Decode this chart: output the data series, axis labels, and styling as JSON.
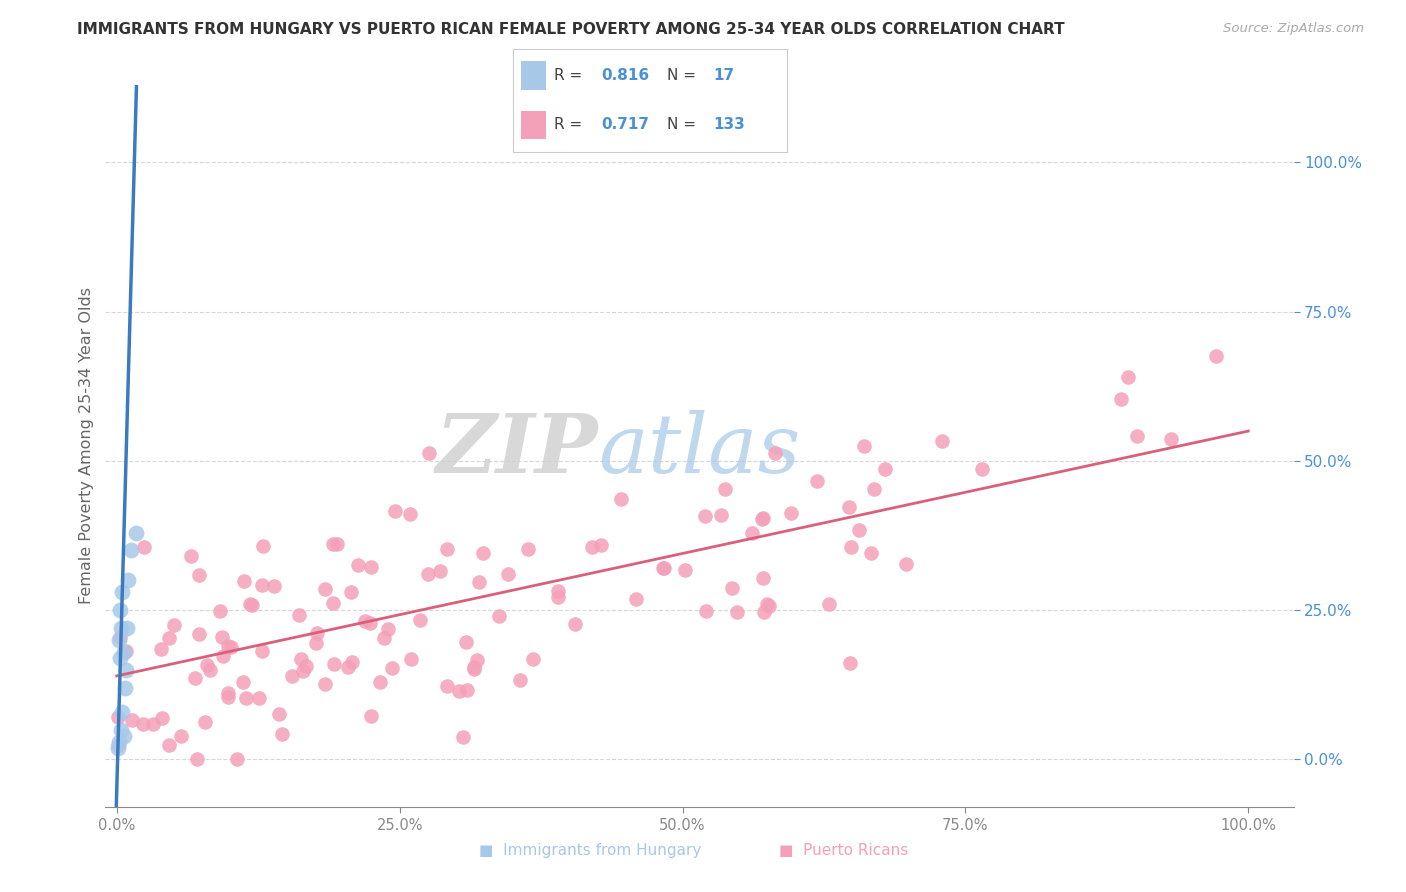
{
  "title": "IMMIGRANTS FROM HUNGARY VS PUERTO RICAN FEMALE POVERTY AMONG 25-34 YEAR OLDS CORRELATION CHART",
  "source": "Source: ZipAtlas.com",
  "ylabel": "Female Poverty Among 25-34 Year Olds",
  "watermark_zip": "ZIP",
  "watermark_atlas": "atlas",
  "xlim": [
    -0.01,
    1.04
  ],
  "ylim": [
    -0.08,
    1.13
  ],
  "xticks": [
    0.0,
    0.25,
    0.5,
    0.75,
    1.0
  ],
  "xticklabels": [
    "0.0%",
    "25.0%",
    "50.0%",
    "75.0%",
    "100.0%"
  ],
  "yticks": [
    0.0,
    0.25,
    0.5,
    0.75,
    1.0
  ],
  "yticklabels": [
    "0.0%",
    "25.0%",
    "50.0%",
    "75.0%",
    "100.0%"
  ],
  "blue_color": "#3a7bbf",
  "blue_scatter_color": "#a8c8e8",
  "pink_color": "#d9607a",
  "pink_scatter_color": "#f4a0b8",
  "background_color": "#ffffff",
  "grid_color": "#cccccc",
  "title_color": "#333333",
  "axis_color": "#888888",
  "right_axis_color": "#4a90d9",
  "legend_R1": "0.816",
  "legend_N1": "17",
  "legend_R2": "0.717",
  "legend_N2": "133",
  "legend_label1": "Immigrants from Hungary",
  "legend_label2": "Puerto Ricans",
  "legend_text_color": "#4a90d9",
  "legend_label_color": "#555555"
}
